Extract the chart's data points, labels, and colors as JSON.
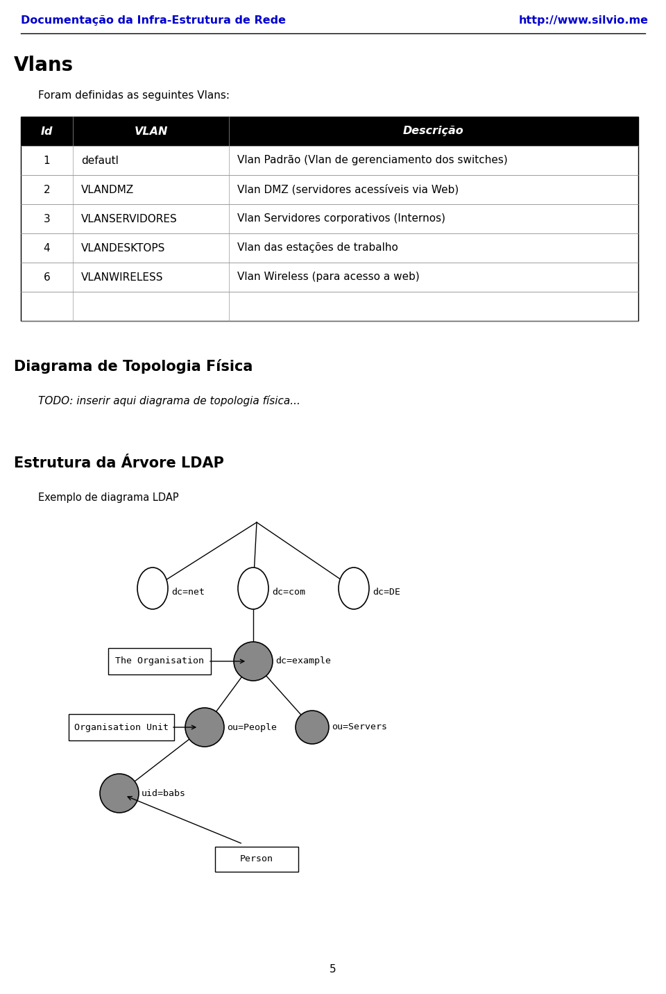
{
  "header_left": "Documentação da Infra-Estrutura de Rede",
  "header_right": "http://www.silvio.me",
  "header_color": "#0000CC",
  "section1_title": "Vlans",
  "section1_subtitle": "Foram definidas as seguintes Vlans:",
  "table_header": [
    "Id",
    "VLAN",
    "Descrição"
  ],
  "table_rows": [
    [
      "1",
      "defautl",
      "Vlan Padrão (Vlan de gerenciamento dos switches)"
    ],
    [
      "2",
      "VLANDMZ",
      "Vlan DMZ (servidores acessíveis via Web)"
    ],
    [
      "3",
      "VLANSERVIDORES",
      "Vlan Servidores corporativos (Internos)"
    ],
    [
      "4",
      "VLANDESKTOPS",
      "Vlan das estações de trabalho"
    ],
    [
      "6",
      "VLANWIRELESS",
      "Vlan Wireless (para acesso a web)"
    ],
    [
      "",
      "",
      ""
    ]
  ],
  "section2_title": "Diagrama de Topologia Física",
  "section2_todo": "TODO: inserir aqui diagrama de topologia física...",
  "section3_title": "Estrutura da Árvore LDAP",
  "section3_subtitle": "Exemplo de diagrama LDAP",
  "page_number": "5"
}
